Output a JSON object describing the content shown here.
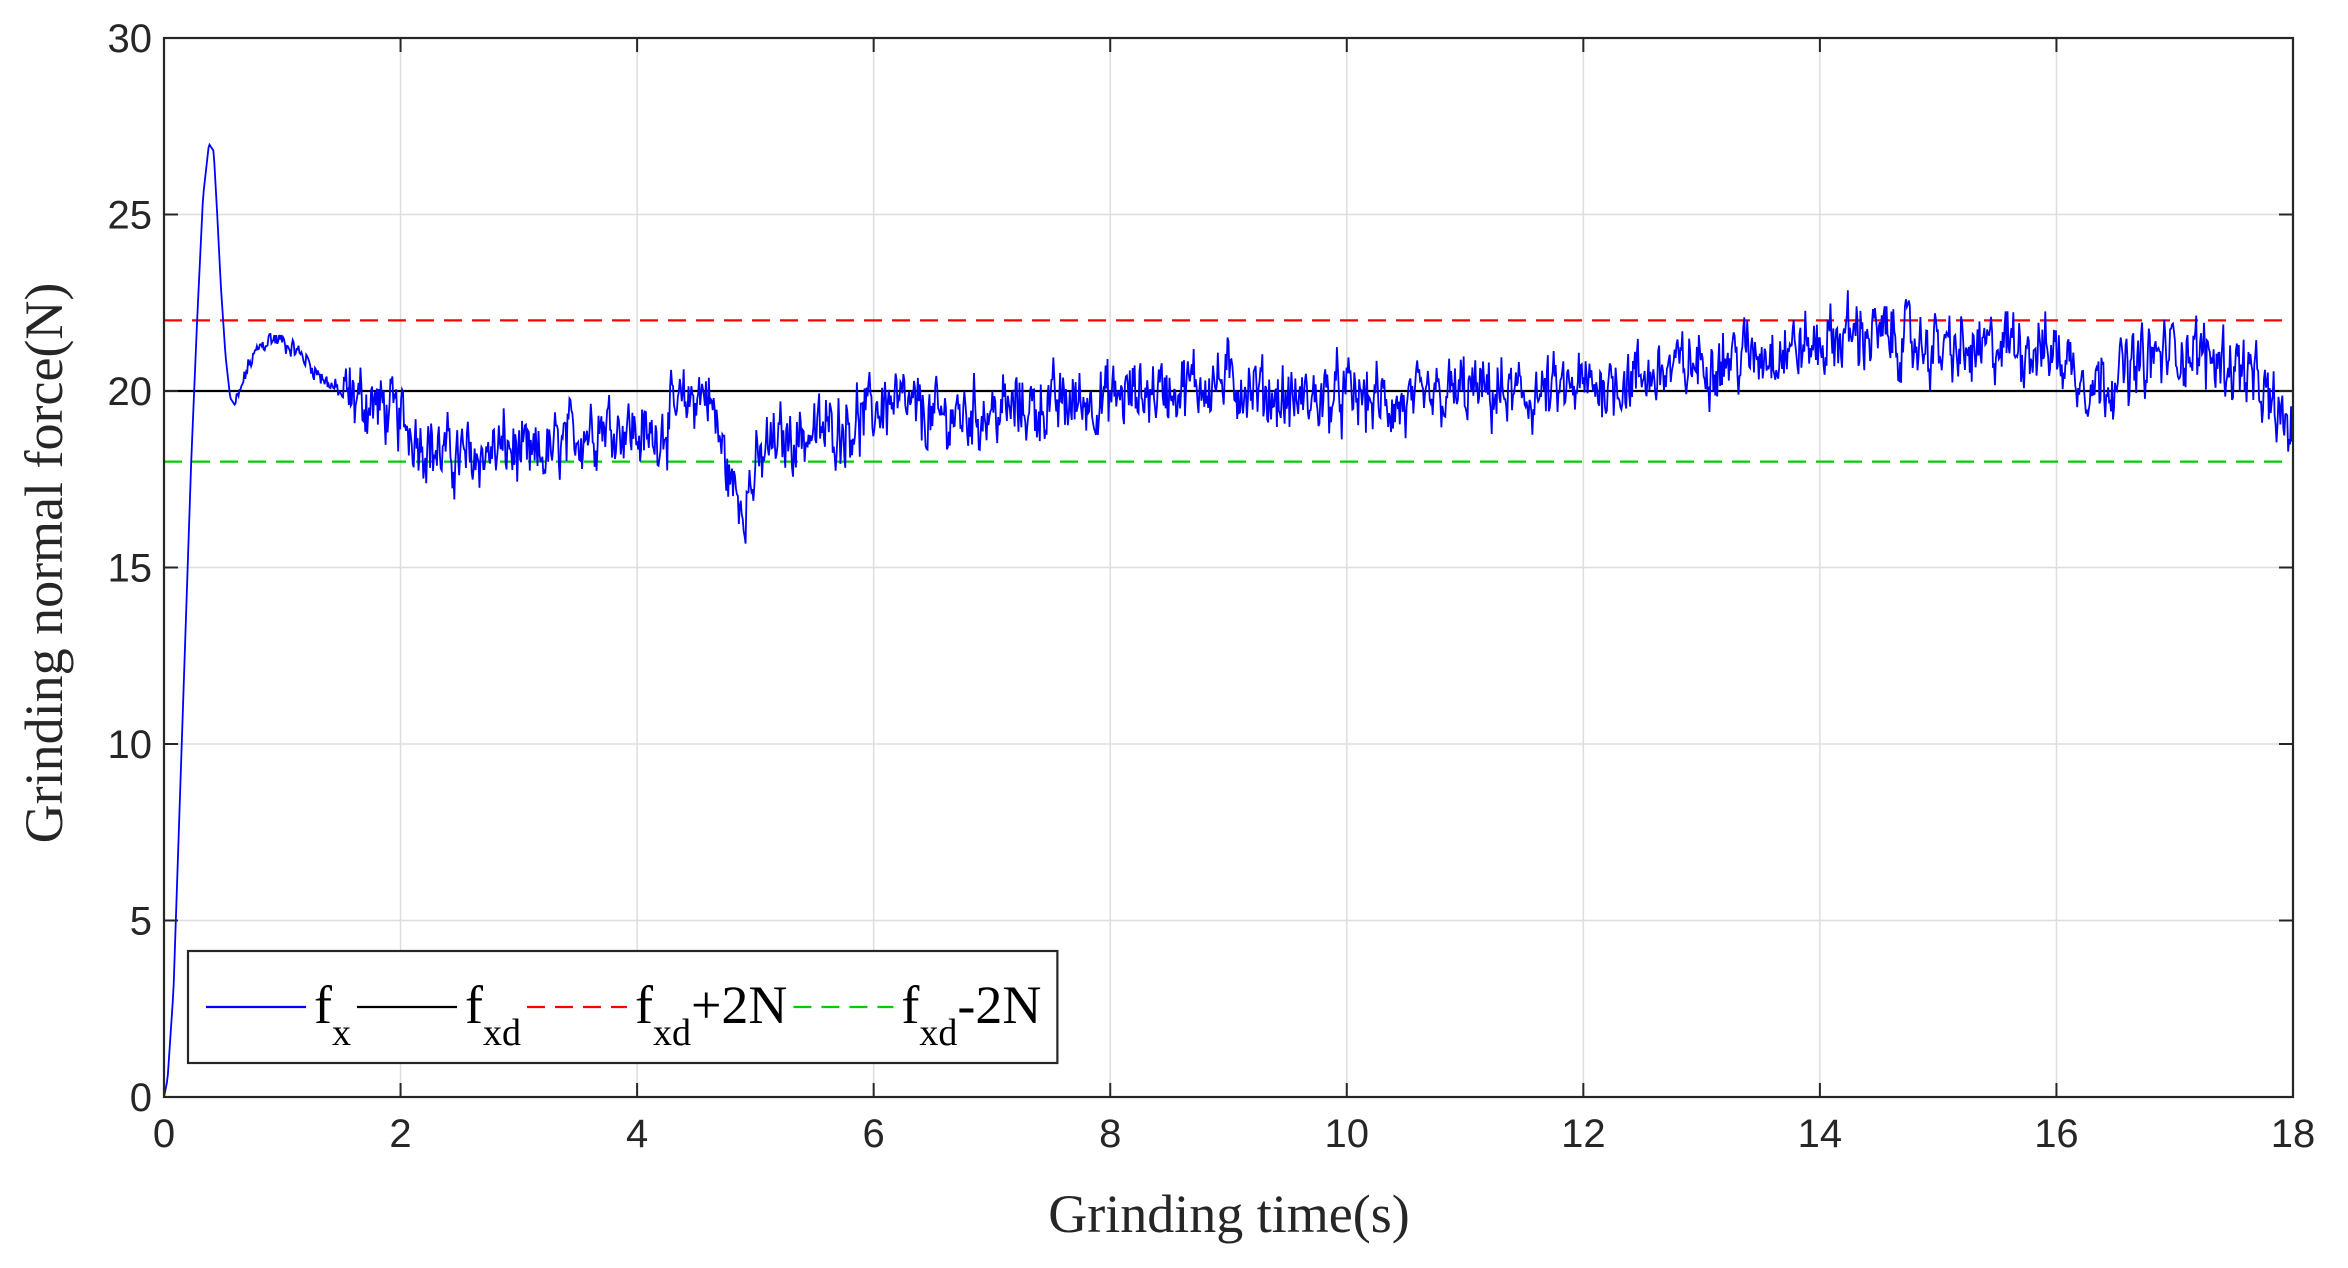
{
  "chart_data": {
    "type": "line",
    "xlabel": "Grinding time(s)",
    "ylabel": "Grinding normal force(N)",
    "xlim": [
      0,
      18
    ],
    "ylim": [
      0,
      30
    ],
    "xticks": [
      0,
      2,
      4,
      6,
      8,
      10,
      12,
      14,
      16,
      18
    ],
    "yticks": [
      0,
      5,
      10,
      15,
      20,
      25,
      30
    ],
    "grid": true,
    "legend_position": "bottom-left",
    "legend_orientation": "horizontal",
    "series": [
      {
        "name": "f_x",
        "legend_main": "f",
        "legend_sub": "x",
        "legend_suffix": "",
        "color": "#0000ff",
        "style": "solid",
        "noisy": true,
        "x": [
          0,
          0.03,
          0.08,
          0.13,
          0.18,
          0.23,
          0.28,
          0.33,
          0.38,
          0.42,
          0.45,
          0.48,
          0.52,
          0.56,
          0.6,
          0.65,
          0.7,
          0.8,
          0.9,
          1.0,
          1.1,
          1.2,
          1.3,
          1.4,
          1.5,
          1.6,
          1.7,
          1.8,
          1.9,
          2.0,
          2.1,
          2.2,
          2.3,
          2.5,
          2.7,
          2.9,
          3.1,
          3.3,
          3.5,
          3.7,
          3.9,
          4.1,
          4.3,
          4.5,
          4.6,
          4.7,
          4.8,
          4.9,
          5.0,
          5.1,
          5.3,
          5.5,
          5.7,
          5.9,
          6.1,
          6.3,
          6.5,
          6.7,
          7.0,
          7.5,
          8.0,
          8.5,
          9.0,
          9.5,
          10.0,
          10.5,
          11.0,
          11.5,
          12.0,
          12.5,
          13.0,
          13.5,
          14.0,
          14.3,
          14.6,
          15.0,
          15.3,
          15.6,
          16.0,
          16.3,
          16.6,
          17.0,
          17.3,
          17.6,
          17.8,
          18.0
        ],
        "y": [
          0,
          0.5,
          3,
          8,
          13,
          18,
          22,
          25.5,
          27,
          26.8,
          25,
          23,
          21,
          19.8,
          19.6,
          20,
          20.6,
          21.2,
          21.5,
          21.4,
          21.2,
          20.9,
          20.5,
          20.2,
          19.9,
          19.8,
          19.7,
          19.6,
          19.4,
          19.2,
          18.9,
          18.6,
          18.3,
          18.1,
          18.2,
          18.4,
          18.0,
          18.3,
          18.8,
          19.1,
          19.0,
          18.6,
          19.3,
          19.9,
          20.0,
          18.6,
          17.3,
          16.9,
          17.6,
          18.4,
          18.7,
          18.8,
          19.0,
          19.2,
          19.7,
          19.5,
          19.2,
          19.3,
          19.4,
          19.6,
          19.8,
          20.1,
          20.3,
          19.7,
          19.9,
          19.5,
          20.0,
          19.8,
          20.1,
          20.4,
          20.8,
          21.1,
          21.3,
          21.7,
          21.5,
          21.2,
          21.0,
          21.4,
          21.1,
          20.2,
          20.6,
          21.2,
          21.0,
          20.6,
          19.6,
          18.8
        ]
      },
      {
        "name": "f_xd",
        "legend_main": "f",
        "legend_sub": "xd",
        "legend_suffix": "",
        "color": "#000000",
        "style": "solid",
        "x": [
          0,
          18
        ],
        "y": [
          20,
          20
        ]
      },
      {
        "name": "f_xd+2N",
        "legend_main": "f",
        "legend_sub": "xd",
        "legend_suffix": "+2N",
        "color": "#ff0000",
        "style": "dashed",
        "x": [
          0,
          18
        ],
        "y": [
          22,
          22
        ]
      },
      {
        "name": "f_xd-2N",
        "legend_main": "f",
        "legend_sub": "xd",
        "legend_suffix": "-2N",
        "color": "#00cc00",
        "style": "dashed",
        "x": [
          0,
          18
        ],
        "y": [
          18,
          18
        ]
      }
    ]
  }
}
